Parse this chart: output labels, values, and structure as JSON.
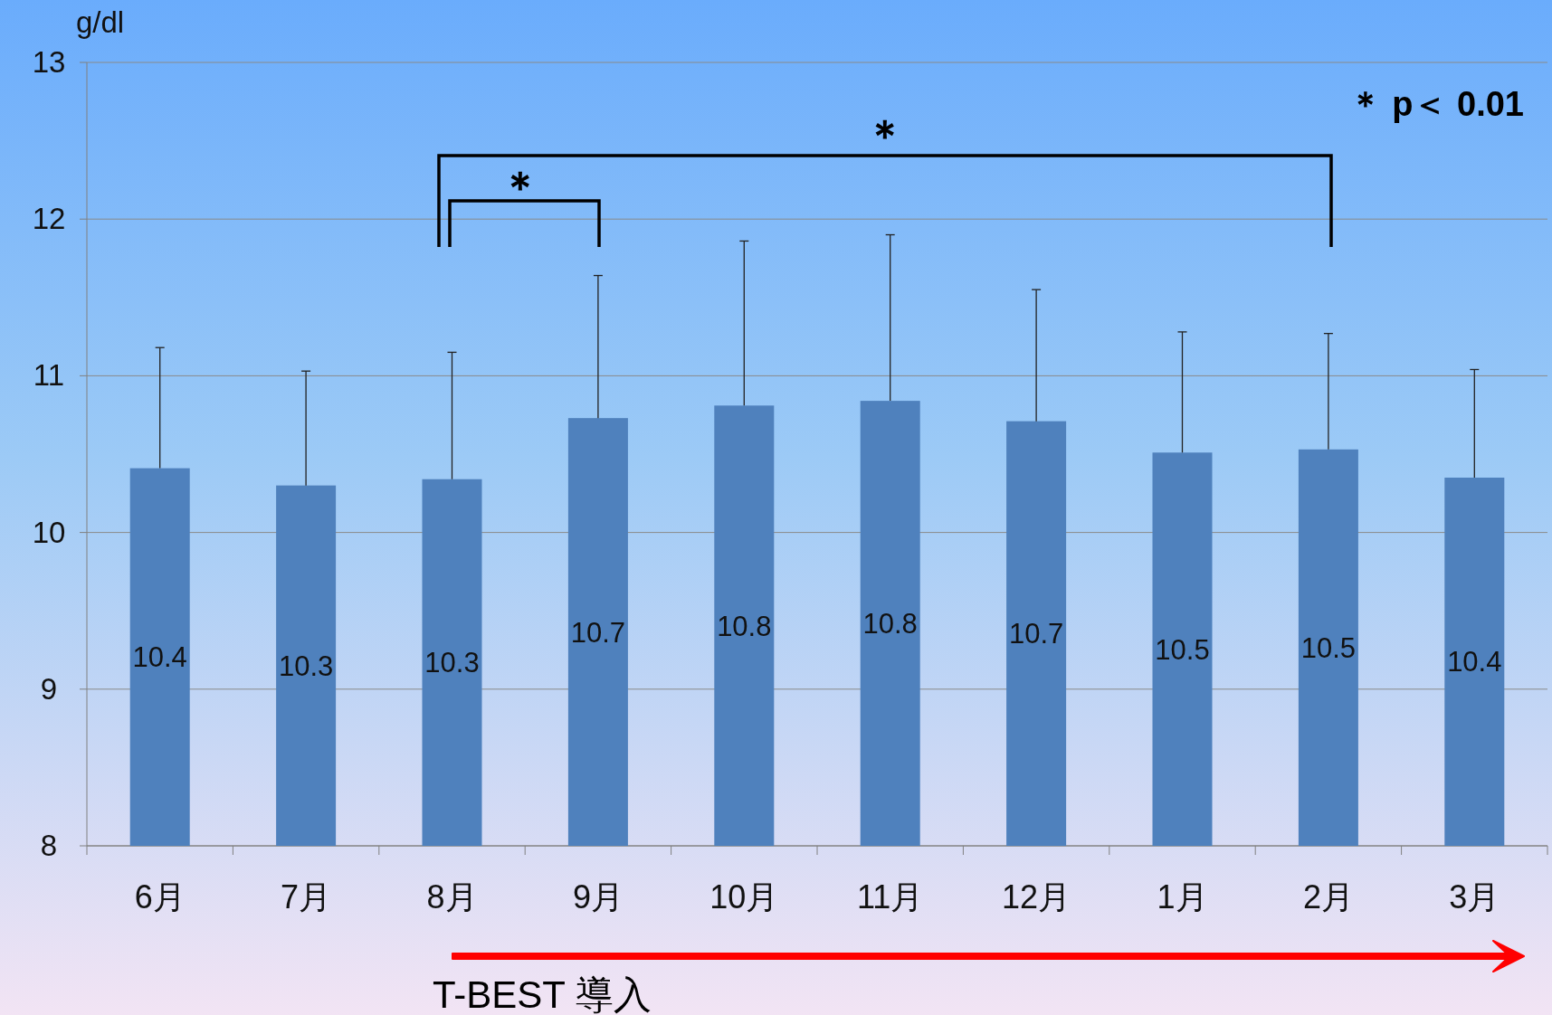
{
  "chart_data": {
    "type": "bar",
    "ylabel": "g/dl",
    "categories": [
      "6月",
      "7月",
      "8月",
      "9月",
      "10月",
      "11月",
      "12月",
      "1月",
      "2月",
      "3月"
    ],
    "values": [
      10.41,
      10.3,
      10.34,
      10.73,
      10.81,
      10.84,
      10.71,
      10.51,
      10.53,
      10.35
    ],
    "value_labels": [
      "10.4",
      "10.3",
      "10.3",
      "10.7",
      "10.8",
      "10.8",
      "10.7",
      "10.5",
      "10.5",
      "10.4"
    ],
    "errors": [
      [
        10.41,
        11.18
      ],
      [
        10.3,
        11.03
      ],
      [
        10.34,
        11.15
      ],
      [
        10.73,
        11.64
      ],
      [
        10.81,
        11.86
      ],
      [
        10.84,
        11.9
      ],
      [
        10.71,
        11.55
      ],
      [
        10.51,
        11.28
      ],
      [
        10.53,
        11.27
      ],
      [
        10.35,
        11.04
      ]
    ],
    "color": "#4f81bd",
    "ylim": [
      8,
      13
    ],
    "yticks": [
      8,
      9,
      10,
      11,
      12,
      13
    ],
    "grid": "y",
    "annotations": [
      "＊ p＜ 0.01",
      "＊",
      "＊",
      "T-BEST 導入"
    ]
  }
}
